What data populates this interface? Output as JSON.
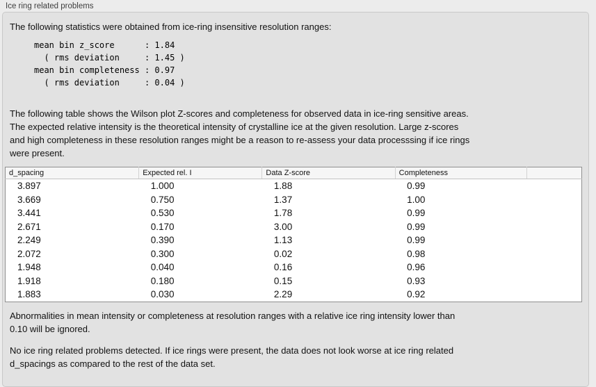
{
  "panel": {
    "title": "Ice ring related problems"
  },
  "intro": "The following statistics were obtained from ice-ring insensitive resolution ranges:",
  "stats_lines": [
    "mean bin z_score      : 1.84",
    "  ( rms deviation     : 1.45 )",
    "mean bin completeness : 0.97",
    "  ( rms deviation     : 0.04 )"
  ],
  "stats": {
    "mean_bin_z_score": "1.84",
    "z_score_rms_deviation": "1.45",
    "mean_bin_completeness": "0.97",
    "completeness_rms_deviation": "0.04"
  },
  "table_intro_lines": [
    "The following table shows the Wilson plot Z-scores and completeness for observed data in ice-ring sensitive areas.",
    "The expected relative intensity is the theoretical intensity of crystalline ice at the given resolution. Large z-scores",
    "and high completeness in these resolution ranges might be a reason to re-assess your data processsing if ice rings",
    "were present."
  ],
  "table": {
    "columns": [
      "d_spacing",
      "Expected rel. I",
      "Data Z-score",
      "Completeness",
      ""
    ],
    "rows": [
      [
        "3.897",
        "1.000",
        "1.88",
        "0.99",
        ""
      ],
      [
        "3.669",
        "0.750",
        "1.37",
        "1.00",
        ""
      ],
      [
        "3.441",
        "0.530",
        "1.78",
        "0.99",
        ""
      ],
      [
        "2.671",
        "0.170",
        "3.00",
        "0.99",
        ""
      ],
      [
        "2.249",
        "0.390",
        "1.13",
        "0.99",
        ""
      ],
      [
        "2.072",
        "0.300",
        "0.02",
        "0.98",
        ""
      ],
      [
        "1.948",
        "0.040",
        "0.16",
        "0.96",
        ""
      ],
      [
        "1.918",
        "0.180",
        "0.15",
        "0.93",
        ""
      ],
      [
        "1.883",
        "0.030",
        "2.29",
        "0.92",
        ""
      ]
    ]
  },
  "ignore_note_lines": [
    "Abnormalities in mean intensity or completeness at resolution ranges with a relative ice ring intensity lower than",
    "0.10 will be ignored."
  ],
  "conclusion_lines": [
    "No ice ring related problems detected. If ice rings were present, the data does not look worse at ice ring related",
    "d_spacings as compared to the rest of the data set."
  ],
  "colors": {
    "outer_bg": "#ececec",
    "box_bg": "#e2e2e2",
    "box_border": "#c8c8c8",
    "table_border": "#8f8f8f",
    "header_bg": "#f6f6f6",
    "header_divider": "#d2d2d2",
    "header_bottom": "#c2c2c2",
    "row_bg": "#ffffff",
    "text": "#111111",
    "title_text": "#3d3d3d"
  }
}
